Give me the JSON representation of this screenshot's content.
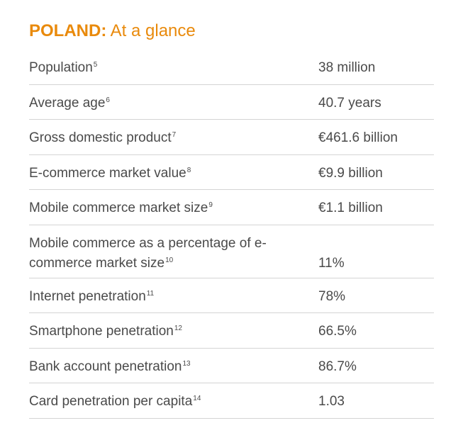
{
  "title": {
    "country": "POLAND:",
    "subtitle": " At a glance"
  },
  "rows": [
    {
      "label": "Population",
      "note": "5",
      "value": "38 million"
    },
    {
      "label": "Average age",
      "note": "6",
      "value": "40.7 years"
    },
    {
      "label": "Gross domestic product",
      "note": "7",
      "value": "€461.6 billion"
    },
    {
      "label": "E-commerce market value",
      "note": "8",
      "value": "€9.9 billion"
    },
    {
      "label": "Mobile commerce market size",
      "note": "9",
      "value": "€1.1 billion"
    },
    {
      "label": "Mobile commerce as a percentage of e-commerce market size",
      "note": "10",
      "value": "11%"
    },
    {
      "label": "Internet penetration",
      "note": "11",
      "value": "78%"
    },
    {
      "label": "Smartphone penetration",
      "note": "12",
      "value": "66.5%"
    },
    {
      "label": "Bank account penetration",
      "note": "13",
      "value": "86.7%"
    },
    {
      "label": "Card penetration per capita",
      "note": "14",
      "value": "1.03"
    }
  ]
}
